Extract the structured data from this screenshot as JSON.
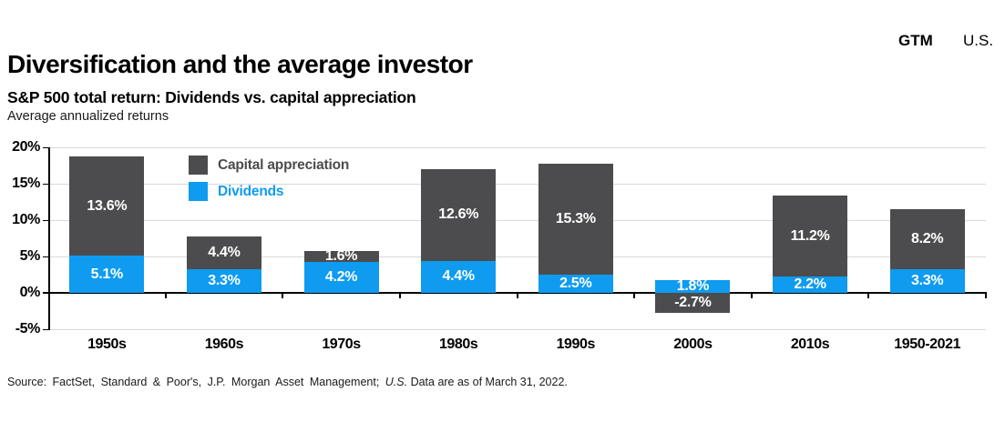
{
  "page": {
    "title": "Diversification and the average investor"
  },
  "header": {
    "gtm_label": "GTM",
    "region_label": "U.S."
  },
  "source": {
    "prefix": "Source: FactSet, Standard & Poor's, J.P. Morgan Asset Management; ",
    "italic": "U.S.",
    "suffix": " Data are as of March 31, 2022."
  },
  "colors": {
    "dividends_blue": "#0e9bf0",
    "capital_appreciation_gray": "#4c4c4e",
    "gridline": "#d8d8d8",
    "axis": "#000000"
  },
  "chart_data": {
    "type": "bar",
    "stacked": true,
    "title": "S&P 500 total return: Dividends vs. capital appreciation",
    "subtitle": "Average annualized returns",
    "categories": [
      "1950s",
      "1960s",
      "1970s",
      "1980s",
      "1990s",
      "2000s",
      "2010s",
      "1950-2021"
    ],
    "series": [
      {
        "name": "Dividends",
        "color": "#0e9bf0",
        "values": [
          5.1,
          3.3,
          4.2,
          4.4,
          2.5,
          1.8,
          2.2,
          3.3
        ]
      },
      {
        "name": "Capital appreciation",
        "color": "#4c4c4e",
        "values": [
          13.6,
          4.4,
          1.6,
          12.6,
          15.3,
          -2.7,
          11.2,
          8.2
        ]
      }
    ],
    "legend_order": [
      "Capital appreciation",
      "Dividends"
    ],
    "legend_position": "top-left-inside",
    "y_ticks": [
      20,
      15,
      10,
      5,
      0,
      -5
    ],
    "ylim": [
      -5,
      20
    ],
    "value_suffix": "%",
    "grid": true,
    "xlabel": "",
    "ylabel": ""
  }
}
